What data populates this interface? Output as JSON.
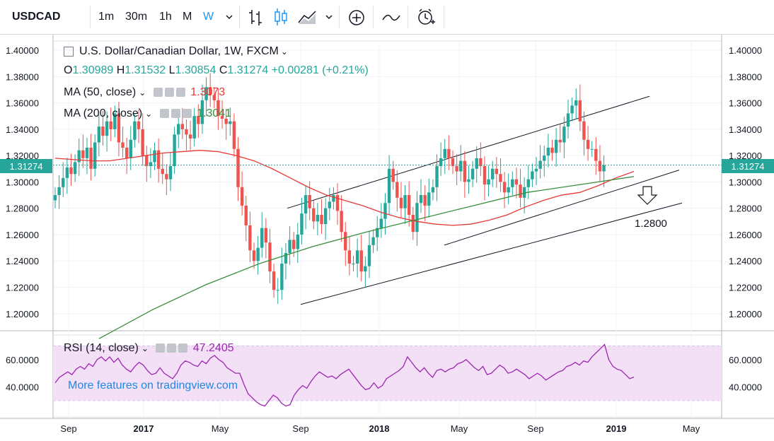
{
  "toolbar": {
    "symbol": "USDCAD",
    "intervals": [
      "1m",
      "30m",
      "1h",
      "M",
      "W"
    ],
    "active_interval": "W",
    "icons": [
      "chevron-down-icon",
      "bar-chart-icon",
      "candle-chart-icon",
      "area-chart-icon",
      "chevron-down-icon",
      "add-indicator-icon",
      "compare-icon",
      "alert-icon"
    ]
  },
  "legend": {
    "title": "U.S. Dollar/Canadian Dollar, 1W, FXCM",
    "o_label": "O",
    "o": "1.30989",
    "h_label": "H",
    "h": "1.31532",
    "l_label": "L",
    "l": "1.30854",
    "c_label": "C",
    "c": "1.31274",
    "change": "+0.00281 (+0.21%)",
    "ma50_label": "MA (50, close)",
    "ma50_value": "1.3073",
    "ma200_label": "MA (200, close)",
    "ma200_value": "1.3041",
    "rsi_label": "RSI (14, close)",
    "rsi_value": "47.2405"
  },
  "price_label": "1.31274",
  "annotation": "1.2800",
  "watermark": "More features on tradingview.com",
  "colors": {
    "up": "#26a69a",
    "down": "#ef5350",
    "ma50": "#e53935",
    "ma200": "#388e3c",
    "rsi": "#9c27b0",
    "rsi_band": "#f3e0f7",
    "accent": "#2196f3",
    "price_line": "#26a69a"
  },
  "chart_data": {
    "type": "candlestick",
    "title": "U.S. Dollar/Canadian Dollar, 1W, FXCM",
    "price_axis": {
      "ticks": [
        "1.40000",
        "1.38000",
        "1.36000",
        "1.34000",
        "1.32000",
        "1.30000",
        "1.28000",
        "1.26000",
        "1.24000",
        "1.22000",
        "1.20000"
      ],
      "ylim": [
        1.187,
        1.407
      ]
    },
    "time_axis": {
      "ticks": [
        "Sep",
        "2017",
        "May",
        "Sep",
        "2018",
        "May",
        "Sep",
        "2019",
        "May"
      ]
    },
    "rsi_axis": {
      "ticks": [
        "60.0000",
        "40.0000"
      ],
      "ylim": [
        18,
        78
      ],
      "band": [
        30,
        70
      ]
    },
    "closes": [
      1.29,
      1.296,
      1.303,
      1.311,
      1.306,
      1.315,
      1.324,
      1.318,
      1.326,
      1.31,
      1.33,
      1.342,
      1.335,
      1.346,
      1.34,
      1.352,
      1.33,
      1.326,
      1.318,
      1.332,
      1.346,
      1.34,
      1.32,
      1.312,
      1.315,
      1.324,
      1.31,
      1.306,
      1.302,
      1.312,
      1.336,
      1.344,
      1.34,
      1.336,
      1.333,
      1.35,
      1.344,
      1.362,
      1.372,
      1.366,
      1.362,
      1.35,
      1.348,
      1.344,
      1.346,
      1.325,
      1.296,
      1.282,
      1.267,
      1.248,
      1.24,
      1.25,
      1.265,
      1.254,
      1.232,
      1.218,
      1.218,
      1.238,
      1.246,
      1.256,
      1.249,
      1.26,
      1.276,
      1.29,
      1.28,
      1.27,
      1.275,
      1.268,
      1.28,
      1.285,
      1.29,
      1.278,
      1.262,
      1.248,
      1.238,
      1.238,
      1.248,
      1.232,
      1.236,
      1.252,
      1.258,
      1.265,
      1.272,
      1.284,
      1.31,
      1.3,
      1.288,
      1.28,
      1.29,
      1.275,
      1.262,
      1.284,
      1.29,
      1.282,
      1.292,
      1.296,
      1.312,
      1.318,
      1.325,
      1.318,
      1.312,
      1.308,
      1.316,
      1.3,
      1.302,
      1.31,
      1.318,
      1.312,
      1.298,
      1.302,
      1.31,
      1.306,
      1.3,
      1.292,
      1.296,
      1.302,
      1.298,
      1.288,
      1.296,
      1.302,
      1.308,
      1.31,
      1.316,
      1.32,
      1.326,
      1.322,
      1.332,
      1.33,
      1.342,
      1.352,
      1.358,
      1.362,
      1.346,
      1.332,
      1.325,
      1.325,
      1.316,
      1.308,
      1.3127
    ],
    "ma50": [
      1.318,
      1.317,
      1.316,
      1.316,
      1.318,
      1.32,
      1.322,
      1.323,
      1.324,
      1.323,
      1.32,
      1.316,
      1.31,
      1.303,
      1.296,
      1.29,
      1.286,
      1.282,
      1.277,
      1.273,
      1.27,
      1.268,
      1.267,
      1.268,
      1.271,
      1.275,
      1.281,
      1.286,
      1.29,
      1.292,
      1.297,
      1.303,
      1.308
    ],
    "ma200": [
      1.181,
      1.203,
      1.222,
      1.238,
      1.251,
      1.262,
      1.272,
      1.282,
      1.292,
      1.298,
      1.3041
    ],
    "rsi": [
      43,
      47,
      49,
      51,
      49,
      53,
      55,
      53,
      57,
      55,
      60,
      62,
      59,
      62,
      58,
      61,
      56,
      53,
      51,
      55,
      58,
      56,
      52,
      49,
      50,
      54,
      50,
      48,
      46,
      50,
      56,
      59,
      58,
      56,
      55,
      59,
      57,
      61,
      63,
      60,
      58,
      54,
      52,
      50,
      50,
      42,
      35,
      32,
      29,
      27,
      26,
      30,
      34,
      32,
      28,
      26,
      27,
      34,
      38,
      41,
      39,
      44,
      48,
      51,
      49,
      47,
      48,
      46,
      49,
      51,
      53,
      49,
      45,
      41,
      38,
      39,
      43,
      39,
      41,
      46,
      48,
      50,
      52,
      55,
      62,
      58,
      54,
      51,
      54,
      50,
      47,
      52,
      53,
      51,
      53,
      54,
      57,
      58,
      60,
      57,
      54,
      52,
      55,
      49,
      50,
      53,
      56,
      54,
      50,
      51,
      53,
      51,
      49,
      46,
      48,
      50,
      48,
      45,
      47,
      49,
      51,
      52,
      55,
      56,
      58,
      56,
      59,
      58,
      62,
      65,
      68,
      71,
      60,
      55,
      53,
      52,
      49,
      46,
      47.24
    ],
    "channels": [
      {
        "from": [
          "2017-09",
          1.28
        ],
        "to": [
          "2019-03",
          1.365
        ]
      },
      {
        "from": [
          "2017-09",
          1.207
        ],
        "to": [
          "2019-03",
          1.284
        ]
      },
      {
        "from": [
          "2018-04",
          1.252
        ],
        "to": [
          "2019-03",
          1.309
        ]
      }
    ],
    "annotations": [
      {
        "text": "1.2800",
        "marker": "down-arrow"
      }
    ]
  }
}
